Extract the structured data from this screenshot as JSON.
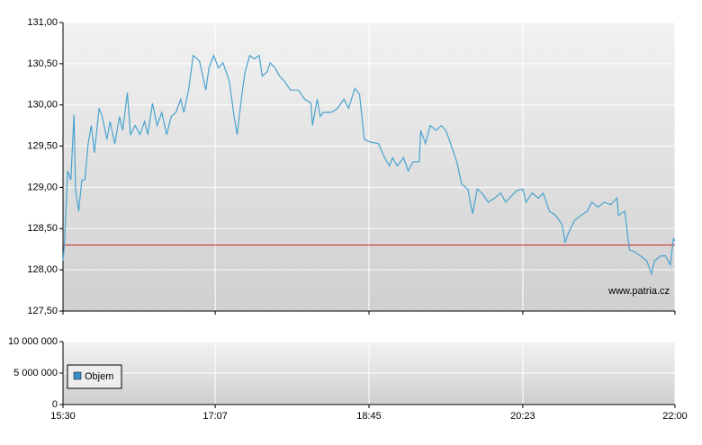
{
  "chart_data": [
    {
      "type": "line",
      "annotation": "www.patria.cz",
      "x": [
        "15:30",
        "15:31",
        "15:33",
        "15:35",
        "15:37",
        "15:38",
        "15:40",
        "15:42",
        "15:44",
        "15:46",
        "15:48",
        "15:50",
        "15:53",
        "15:55",
        "15:58",
        "16:00",
        "16:03",
        "16:06",
        "16:08",
        "16:11",
        "16:13",
        "16:16",
        "16:19",
        "16:22",
        "16:24",
        "16:27",
        "16:30",
        "16:33",
        "16:36",
        "16:39",
        "16:42",
        "16:45",
        "16:47",
        "16:50",
        "16:53",
        "16:57",
        "17:01",
        "17:03",
        "17:06",
        "17:09",
        "17:12",
        "17:16",
        "17:19",
        "17:21",
        "17:24",
        "17:26",
        "17:29",
        "17:32",
        "17:35",
        "17:37",
        "17:40",
        "17:42",
        "17:45",
        "17:48",
        "17:51",
        "17:55",
        "17:58",
        "18:00",
        "18:04",
        "18:08",
        "18:09",
        "18:12",
        "18:14",
        "18:16",
        "18:21",
        "18:25",
        "18:29",
        "18:32",
        "18:36",
        "18:39",
        "18:42",
        "18:46",
        "18:51",
        "18:55",
        "18:58",
        "19:00",
        "19:03",
        "19:07",
        "19:10",
        "19:13",
        "19:17",
        "19:18",
        "19:21",
        "19:24",
        "19:28",
        "19:31",
        "19:34",
        "19:37",
        "19:41",
        "19:44",
        "19:48",
        "19:51",
        "19:54",
        "19:57",
        "20:01",
        "20:05",
        "20:09",
        "20:12",
        "20:16",
        "20:19",
        "20:23",
        "20:25",
        "20:29",
        "20:33",
        "20:36",
        "20:40",
        "20:44",
        "20:48",
        "20:50",
        "20:52",
        "20:56",
        "21:00",
        "21:04",
        "21:07",
        "21:11",
        "21:15",
        "21:19",
        "21:23",
        "21:24",
        "21:28",
        "21:31",
        "21:34",
        "21:38",
        "21:42",
        "21:45",
        "21:47",
        "21:51",
        "21:54",
        "21:57",
        "21:59",
        "22:00"
      ],
      "series": [
        {
          "color": "#4aa3cf",
          "values": [
            128.11,
            128.33,
            129.2,
            129.09,
            129.88,
            128.98,
            128.71,
            129.09,
            129.09,
            129.53,
            129.75,
            129.42,
            129.96,
            129.86,
            129.58,
            129.8,
            129.53,
            129.86,
            129.69,
            130.15,
            129.64,
            129.75,
            129.64,
            129.8,
            129.64,
            130.02,
            129.75,
            129.91,
            129.64,
            129.86,
            129.91,
            130.07,
            129.91,
            130.18,
            130.6,
            130.53,
            130.18,
            130.45,
            130.6,
            130.45,
            130.51,
            130.29,
            129.86,
            129.64,
            130.13,
            130.4,
            130.6,
            130.56,
            130.6,
            130.35,
            130.4,
            130.51,
            130.45,
            130.35,
            130.29,
            130.18,
            130.18,
            130.18,
            130.07,
            130.02,
            129.75,
            130.07,
            129.86,
            129.91,
            129.91,
            129.96,
            130.07,
            129.96,
            130.2,
            130.13,
            129.58,
            129.55,
            129.53,
            129.36,
            129.26,
            129.36,
            129.26,
            129.36,
            129.2,
            129.31,
            129.31,
            129.69,
            129.53,
            129.75,
            129.69,
            129.75,
            129.69,
            129.53,
            129.31,
            129.04,
            128.98,
            128.68,
            128.98,
            128.93,
            128.82,
            128.87,
            128.93,
            128.82,
            128.9,
            128.96,
            128.98,
            128.82,
            128.93,
            128.87,
            128.93,
            128.71,
            128.66,
            128.55,
            128.33,
            128.44,
            128.6,
            128.66,
            128.71,
            128.82,
            128.76,
            128.82,
            128.79,
            128.87,
            128.66,
            128.71,
            128.24,
            128.22,
            128.17,
            128.11,
            127.95,
            128.11,
            128.17,
            128.17,
            128.06,
            128.38,
            128.35
          ]
        }
      ],
      "hline": 128.3,
      "hline_color": "#cc2222",
      "ylim": [
        127.5,
        131
      ],
      "yticks": [
        {
          "value": 127.5,
          "label": "127,50"
        },
        {
          "value": 128,
          "label": "128,00"
        },
        {
          "value": 128.5,
          "label": "128,50"
        },
        {
          "value": 129,
          "label": "129,00"
        },
        {
          "value": 129.5,
          "label": "129,50"
        },
        {
          "value": 130,
          "label": "130,00"
        },
        {
          "value": 130.5,
          "label": "130,50"
        },
        {
          "value": 131,
          "label": "131,00"
        }
      ],
      "grid": true
    },
    {
      "type": "bar",
      "x": [],
      "series": [
        {
          "name": "Objem",
          "color": "#3a8fc7",
          "values": []
        }
      ],
      "legend": "left",
      "xlim": [
        "15:30",
        "22:00"
      ],
      "xticks": [
        "15:30",
        "17:07",
        "18:45",
        "20:23",
        "22:00"
      ],
      "ylim": [
        0,
        10000000
      ],
      "yticks": [
        {
          "value": 0,
          "label": "0"
        },
        {
          "value": 5000000,
          "label": "5 000 000"
        },
        {
          "value": 10000000,
          "label": "10 000 000"
        }
      ],
      "grid": true
    }
  ]
}
